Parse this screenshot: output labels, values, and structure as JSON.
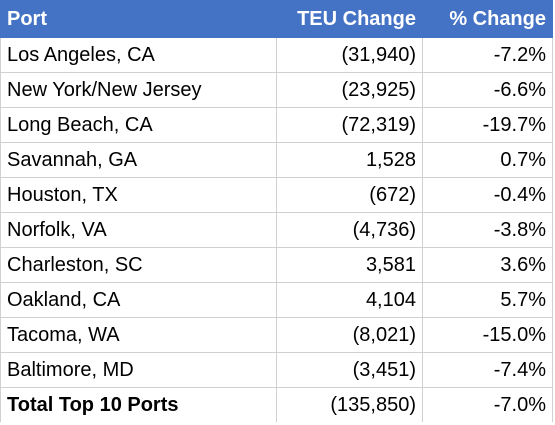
{
  "header": {
    "port": "Port",
    "teu_change": "TEU Change",
    "pct_change": "% Change"
  },
  "rows": [
    {
      "port": "Los Angeles, CA",
      "teu": "(31,940)",
      "pct": "-7.2%"
    },
    {
      "port": "New York/New Jersey",
      "teu": "(23,925)",
      "pct": "-6.6%"
    },
    {
      "port": "Long Beach, CA",
      "teu": "(72,319)",
      "pct": "-19.7%"
    },
    {
      "port": "Savannah, GA",
      "teu": "1,528",
      "pct": "0.7%"
    },
    {
      "port": "Houston, TX",
      "teu": "(672)",
      "pct": "-0.4%"
    },
    {
      "port": "Norfolk, VA",
      "teu": "(4,736)",
      "pct": "-3.8%"
    },
    {
      "port": "Charleston, SC",
      "teu": "3,581",
      "pct": "3.6%"
    },
    {
      "port": "Oakland, CA",
      "teu": "4,104",
      "pct": "5.7%"
    },
    {
      "port": "Tacoma, WA",
      "teu": "(8,021)",
      "pct": "-15.0%"
    },
    {
      "port": "Baltimore, MD",
      "teu": "(3,451)",
      "pct": "-7.4%"
    }
  ],
  "total": {
    "port": "Total Top 10 Ports",
    "teu": "(135,850)",
    "pct": "-7.0%"
  },
  "colors": {
    "header_bg": "#4472c4",
    "header_text": "#ffffff"
  }
}
